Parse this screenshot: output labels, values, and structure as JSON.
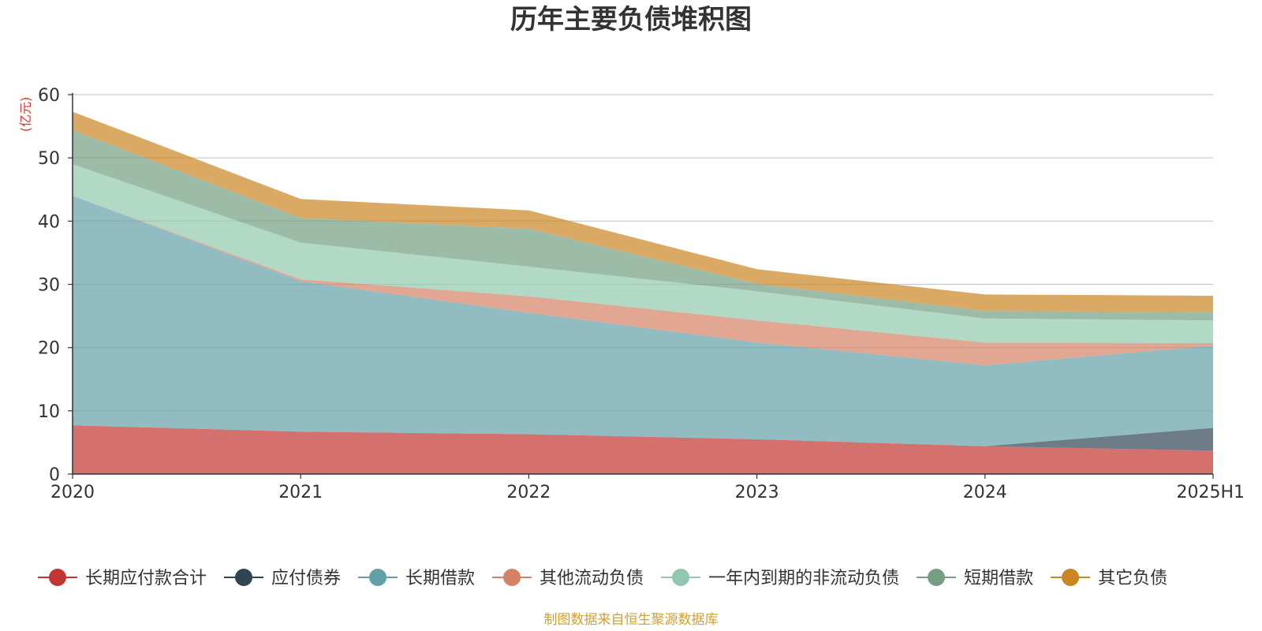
{
  "chart_data": {
    "type": "area",
    "stacked": true,
    "title": "历年主要负债堆积图",
    "unit_label": "(亿元)",
    "source_note": "制图数据来自恒生聚源数据库",
    "categories": [
      "2020",
      "2021",
      "2022",
      "2023",
      "2024",
      "2025H1"
    ],
    "ylim": [
      0,
      60
    ],
    "yticks": [
      "0",
      "10",
      "20",
      "30",
      "40",
      "50",
      "60"
    ],
    "grid": true,
    "legend_position": "bottom",
    "series": [
      {
        "name": "长期应付款合计",
        "color": "#c23531",
        "values": [
          7.7,
          6.7,
          6.3,
          5.5,
          4.4,
          3.7
        ]
      },
      {
        "name": "应付债券",
        "color": "#2f4554",
        "values": [
          0,
          0,
          0,
          0,
          0,
          3.6
        ]
      },
      {
        "name": "长期借款",
        "color": "#61a0a8",
        "values": [
          36.3,
          23.8,
          19.2,
          15.3,
          12.8,
          13.0
        ]
      },
      {
        "name": "其他流动负债",
        "color": "#d48265",
        "values": [
          0,
          0.3,
          2.6,
          3.5,
          3.6,
          0.4
        ]
      },
      {
        "name": "一年内到期的非流动负债",
        "color": "#91c7ae",
        "values": [
          5.0,
          5.8,
          4.7,
          4.6,
          3.8,
          3.6
        ]
      },
      {
        "name": "短期借款",
        "color": "#749f83",
        "values": [
          5.4,
          3.9,
          6.0,
          1.2,
          1.2,
          1.3
        ]
      },
      {
        "name": "其它负债",
        "color": "#ca8622",
        "values": [
          2.9,
          3.0,
          2.9,
          2.3,
          2.6,
          2.6
        ]
      }
    ]
  }
}
